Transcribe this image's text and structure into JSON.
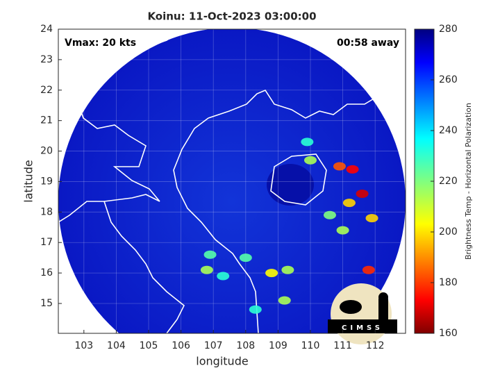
{
  "chart_data": {
    "type": "scatter",
    "title": "Koinu: 11-Oct-2023 03:00:00",
    "annotations": [
      "Vmax: 20 kts",
      "00:58 away"
    ],
    "logo": "CIMSS",
    "xlabel": "longitude",
    "ylabel": "latitude",
    "xlim": [
      102.21,
      112.94
    ],
    "xticks": [
      103,
      104,
      105,
      106,
      107,
      108,
      109,
      110,
      111,
      112
    ],
    "ylim": [
      14.02,
      24
    ],
    "yticks": [
      15,
      16,
      17,
      18,
      19,
      20,
      21,
      22,
      23,
      24
    ],
    "grid": true,
    "x": [
      110.0,
      110.9,
      111.3,
      111.6,
      111.2,
      110.6,
      111.0,
      106.8,
      106.9,
      108.8,
      109.3,
      108.3,
      111.8,
      109.9,
      111.9,
      108.0,
      109.2,
      107.3
    ],
    "y": [
      19.7,
      19.5,
      19.4,
      18.6,
      18.3,
      17.9,
      17.4,
      16.1,
      16.6,
      16.0,
      16.1,
      14.8,
      16.1,
      20.3,
      17.8,
      16.5,
      15.1,
      15.9
    ],
    "values": [
      215,
      185,
      175,
      170,
      200,
      220,
      215,
      215,
      225,
      205,
      215,
      230,
      180,
      230,
      200,
      225,
      215,
      230
    ],
    "colorbar": {
      "label": "Brightness Temp - Horizontal Polarization",
      "lim": [
        160,
        280
      ],
      "ticks": [
        160,
        180,
        200,
        220,
        240,
        260,
        280
      ]
    }
  }
}
